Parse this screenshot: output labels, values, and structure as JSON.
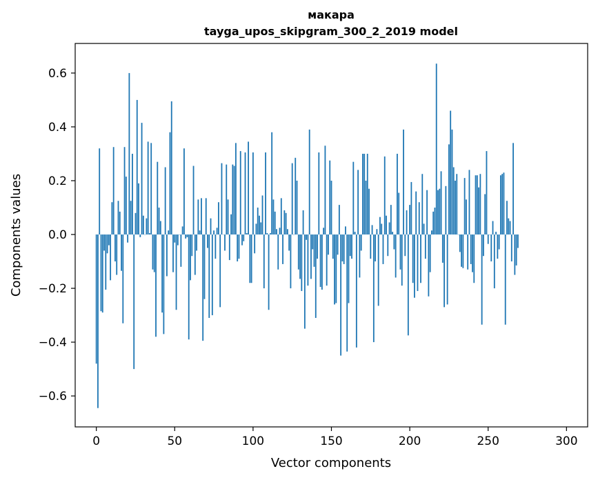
{
  "chart_data": {
    "type": "bar",
    "title": "макара",
    "subtitle": "tayga_upos_skipgram_300_2_2019 model",
    "xlabel": "Vector components",
    "ylabel": "Components values",
    "xlim": [
      -13.5,
      313.5
    ],
    "ylim": [
      -0.715,
      0.71
    ],
    "xticks": [
      0,
      50,
      100,
      150,
      200,
      250,
      300
    ],
    "xtick_labels": [
      "0",
      "50",
      "100",
      "150",
      "200",
      "250",
      "300"
    ],
    "yticks": [
      -0.6,
      -0.4,
      -0.2,
      0.0,
      0.2,
      0.4,
      0.6
    ],
    "ytick_labels": [
      "−0.6",
      "−0.4",
      "−0.2",
      "0.0",
      "0.2",
      "0.4",
      "0.6"
    ],
    "bar_color": "#1f77b4",
    "x_start": 0,
    "values": [
      -0.48,
      -0.645,
      0.32,
      -0.285,
      -0.29,
      -0.06,
      -0.205,
      -0.07,
      -0.04,
      -0.17,
      0.12,
      0.325,
      -0.1,
      -0.15,
      0.125,
      0.085,
      -0.135,
      -0.33,
      0.325,
      0.215,
      -0.03,
      0.6,
      0.125,
      0.3,
      -0.5,
      0.08,
      0.5,
      0.19,
      -0.01,
      0.415,
      0.07,
      0.0,
      0.06,
      0.345,
      0.005,
      0.34,
      -0.13,
      -0.14,
      -0.38,
      0.27,
      0.1,
      0.05,
      -0.29,
      -0.37,
      0.25,
      -0.155,
      0.015,
      0.38,
      0.495,
      -0.14,
      -0.03,
      -0.28,
      -0.04,
      0.0,
      -0.12,
      0.03,
      0.32,
      -0.015,
      -0.01,
      -0.39,
      -0.17,
      -0.08,
      0.255,
      -0.15,
      -0.06,
      0.13,
      0.015,
      0.135,
      -0.395,
      -0.24,
      0.135,
      -0.05,
      -0.31,
      0.06,
      -0.3,
      0.015,
      -0.09,
      0.025,
      0.12,
      -0.27,
      0.265,
      0.0,
      -0.06,
      0.26,
      0.13,
      -0.095,
      0.075,
      0.26,
      0.255,
      0.34,
      -0.1,
      -0.09,
      0.31,
      -0.04,
      -0.025,
      0.305,
      0.005,
      0.345,
      -0.18,
      -0.18,
      0.305,
      -0.07,
      0.04,
      0.1,
      0.07,
      0.045,
      0.145,
      -0.2,
      0.305,
      0.005,
      -0.28,
      0.005,
      0.38,
      0.13,
      0.085,
      0.02,
      -0.13,
      0.025,
      0.135,
      -0.11,
      0.09,
      0.08,
      0.02,
      -0.06,
      -0.2,
      0.265,
      0.0,
      0.285,
      0.2,
      -0.13,
      -0.165,
      -0.21,
      0.09,
      -0.35,
      -0.02,
      -0.19,
      0.39,
      -0.165,
      -0.055,
      -0.12,
      -0.31,
      -0.09,
      0.305,
      -0.195,
      -0.205,
      0.025,
      0.33,
      -0.19,
      -0.075,
      0.275,
      0.2,
      -0.09,
      -0.26,
      -0.255,
      -0.075,
      0.11,
      -0.45,
      -0.1,
      -0.11,
      0.03,
      -0.435,
      -0.255,
      -0.08,
      -0.09,
      0.27,
      0.01,
      -0.42,
      0.24,
      -0.16,
      -0.06,
      0.3,
      0.3,
      0.2,
      0.3,
      0.17,
      -0.09,
      0.035,
      -0.4,
      -0.1,
      0.02,
      -0.265,
      0.065,
      0.04,
      -0.11,
      0.29,
      0.07,
      -0.08,
      0.045,
      0.11,
      0.01,
      -0.055,
      -0.16,
      0.3,
      0.155,
      -0.13,
      -0.19,
      0.39,
      -0.08,
      0.09,
      -0.375,
      0.11,
      0.195,
      -0.18,
      -0.235,
      0.16,
      -0.21,
      0.12,
      -0.18,
      0.225,
      0.04,
      -0.09,
      0.165,
      -0.23,
      -0.14,
      0.015,
      0.085,
      0.1,
      0.635,
      0.165,
      0.17,
      0.235,
      -0.105,
      -0.27,
      0.18,
      -0.26,
      0.335,
      0.46,
      0.39,
      0.25,
      0.2,
      0.225,
      0.0,
      -0.065,
      -0.12,
      -0.125,
      0.21,
      0.13,
      -0.13,
      0.24,
      -0.11,
      -0.14,
      -0.18,
      0.22,
      0.22,
      0.175,
      0.225,
      -0.335,
      -0.08,
      0.15,
      0.31,
      -0.035,
      0.0,
      -0.1,
      0.05,
      -0.2,
      0.01,
      -0.09,
      -0.055,
      0.22,
      0.225,
      0.23,
      -0.335,
      0.125,
      0.06,
      0.05,
      -0.1,
      0.34,
      -0.15,
      -0.115,
      -0.05
    ]
  }
}
